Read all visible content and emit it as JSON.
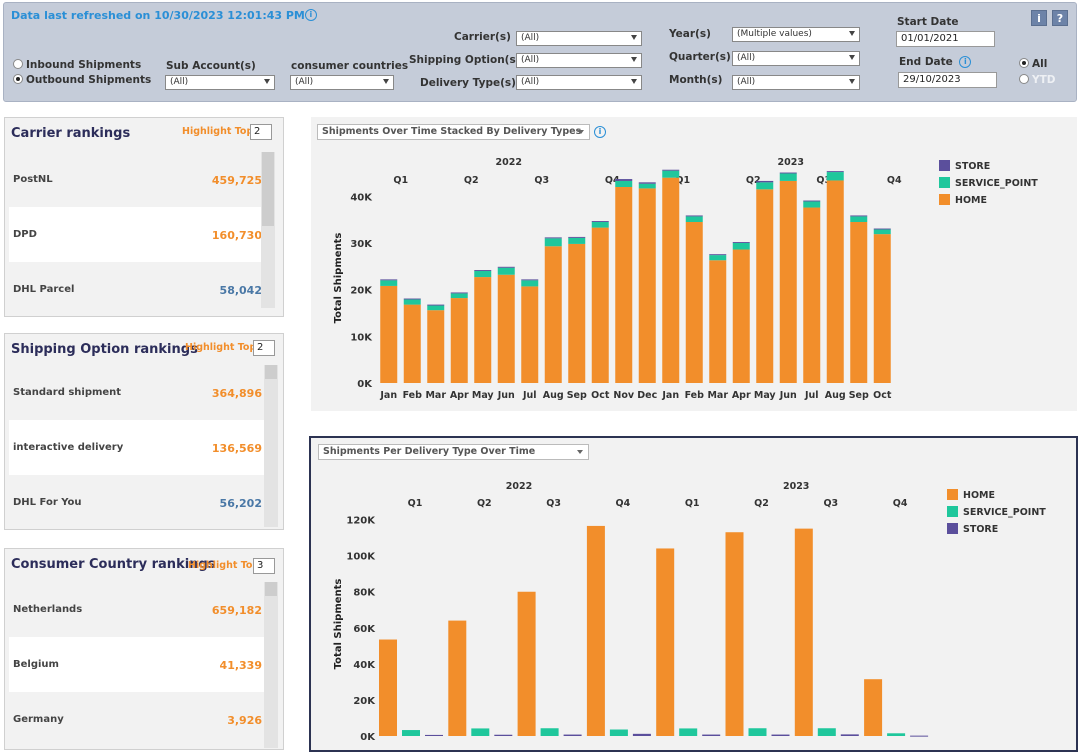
{
  "header": {
    "refresh_text": "Data last refreshed on 10/30/2023 12:01:43 PM",
    "shipment_types": [
      "Inbound Shipments",
      "Outbound Shipments"
    ],
    "filters": {
      "sub_account_label": "Sub Account(s)",
      "sub_account_value": "(All)",
      "consumer_countries_label": "consumer countries",
      "consumer_countries_value": "(All)",
      "carrier_label": "Carrier(s)",
      "carrier_value": "(All)",
      "shipping_option_label": "Shipping Option(s)",
      "shipping_option_value": "(All)",
      "delivery_type_label": "Delivery Type(s)",
      "delivery_type_value": "(All)",
      "year_label": "Year(s)",
      "year_value": "(Multiple values)",
      "quarter_label": "Quarter(s)",
      "quarter_value": "(All)",
      "month_label": "Month(s)",
      "month_value": "(All)"
    },
    "start_date_label": "Start Date",
    "start_date_value": "01/01/2021",
    "end_date_label": "End Date",
    "end_date_value": "29/10/2023",
    "period_options": [
      "All",
      "YTD"
    ],
    "info_button": "i",
    "help_button": "?"
  },
  "carrier_rankings": {
    "title": "Carrier rankings",
    "highlight_label": "Highlight Top",
    "highlight_value": "2",
    "rows": [
      {
        "name": "PostNL",
        "value": "459,725",
        "highlighted": true
      },
      {
        "name": "DPD",
        "value": "160,730",
        "highlighted": true
      },
      {
        "name": "DHL Parcel",
        "value": "58,042",
        "highlighted": false
      }
    ]
  },
  "shipping_rankings": {
    "title": "Shipping Option  rankings",
    "highlight_label": "Highlight Top",
    "highlight_value": "2",
    "rows": [
      {
        "name": "Standard shipment",
        "value": "364,896",
        "highlighted": true
      },
      {
        "name": "interactive delivery",
        "value": "136,569",
        "highlighted": true
      },
      {
        "name": "DHL For You",
        "value": "56,202",
        "highlighted": false
      }
    ]
  },
  "country_rankings": {
    "title": "Consumer Country rankings",
    "highlight_label": "Highlight Top",
    "highlight_value": "3",
    "rows": [
      {
        "name": "Netherlands",
        "value": "659,182",
        "highlighted": true
      },
      {
        "name": "Belgium",
        "value": "41,339",
        "highlighted": true
      },
      {
        "name": "Germany",
        "value": "3,926",
        "highlighted": true
      }
    ]
  },
  "colors": {
    "home": "#f28e2b",
    "service_point": "#1fc79c",
    "store": "#5b4f9c",
    "highlight": "#f28e2b",
    "normal_value": "#4a78a6",
    "title": "#2c2d5a"
  },
  "chart_data": [
    {
      "type": "bar",
      "stacked": true,
      "dropdown": "Shipments Over Time Stacked By Delivery Types",
      "ylabel": "Total Shipments",
      "ylim": [
        0,
        45000
      ],
      "yticks": [
        "0K",
        "10K",
        "20K",
        "30K",
        "40K"
      ],
      "year_labels": [
        {
          "label": "2022",
          "start": 0
        },
        {
          "label": "2023",
          "start": 12
        }
      ],
      "quarter_labels": [
        {
          "label": "Q1",
          "start": 0
        },
        {
          "label": "Q2",
          "start": 3
        },
        {
          "label": "Q3",
          "start": 6
        },
        {
          "label": "Q4",
          "start": 9
        },
        {
          "label": "Q1",
          "start": 12
        },
        {
          "label": "Q2",
          "start": 15
        },
        {
          "label": "Q3",
          "start": 18
        },
        {
          "label": "Q4",
          "start": 21
        }
      ],
      "categories": [
        "Jan",
        "Feb",
        "Mar",
        "Apr",
        "May",
        "Jun",
        "Jul",
        "Aug",
        "Sep",
        "Oct",
        "Nov",
        "Dec",
        "Jan",
        "Feb",
        "Mar",
        "Apr",
        "May",
        "Jun",
        "Jul",
        "Aug",
        "Sep",
        "Oct"
      ],
      "series": [
        {
          "name": "HOME",
          "values": [
            20800,
            16800,
            15600,
            18200,
            22700,
            23200,
            20700,
            29300,
            29800,
            33300,
            42000,
            41700,
            44000,
            34500,
            26300,
            28600,
            41500,
            43300,
            37600,
            43400,
            34500,
            31900
          ]
        },
        {
          "name": "SERVICE_POINT",
          "values": [
            1200,
            1100,
            1000,
            1000,
            1300,
            1500,
            1300,
            1700,
            1300,
            1200,
            1300,
            1000,
            1500,
            1200,
            1100,
            1400,
            1500,
            1600,
            1300,
            1800,
            1200,
            1000
          ]
        },
        {
          "name": "STORE",
          "values": [
            200,
            200,
            200,
            200,
            200,
            200,
            200,
            200,
            200,
            200,
            400,
            300,
            200,
            200,
            200,
            200,
            300,
            200,
            200,
            200,
            200,
            200
          ]
        }
      ],
      "legend": [
        "STORE",
        "SERVICE_POINT",
        "HOME"
      ],
      "legend_position": "top-right"
    },
    {
      "type": "bar",
      "stacked": false,
      "dropdown": "Shipments Per Delivery Type Over Time",
      "ylabel": "Total Shipments",
      "ylim": [
        0,
        122000
      ],
      "yticks": [
        "0K",
        "20K",
        "40K",
        "60K",
        "80K",
        "100K",
        "120K"
      ],
      "year_labels": [
        {
          "label": "2022",
          "start": 0
        },
        {
          "label": "2023",
          "start": 4
        }
      ],
      "categories": [
        "Q1",
        "Q2",
        "Q3",
        "Q4",
        "Q1",
        "Q2",
        "Q3",
        "Q4"
      ],
      "series": [
        {
          "name": "HOME",
          "values": [
            53500,
            64000,
            80000,
            116500,
            104000,
            113000,
            115000,
            31500
          ]
        },
        {
          "name": "SERVICE_POINT",
          "values": [
            3300,
            4200,
            4300,
            3600,
            4200,
            4300,
            4300,
            1500
          ]
        },
        {
          "name": "STORE",
          "values": [
            600,
            700,
            800,
            1200,
            800,
            800,
            900,
            200
          ]
        }
      ],
      "legend": [
        "HOME",
        "SERVICE_POINT",
        "STORE"
      ],
      "legend_position": "top-right"
    }
  ]
}
